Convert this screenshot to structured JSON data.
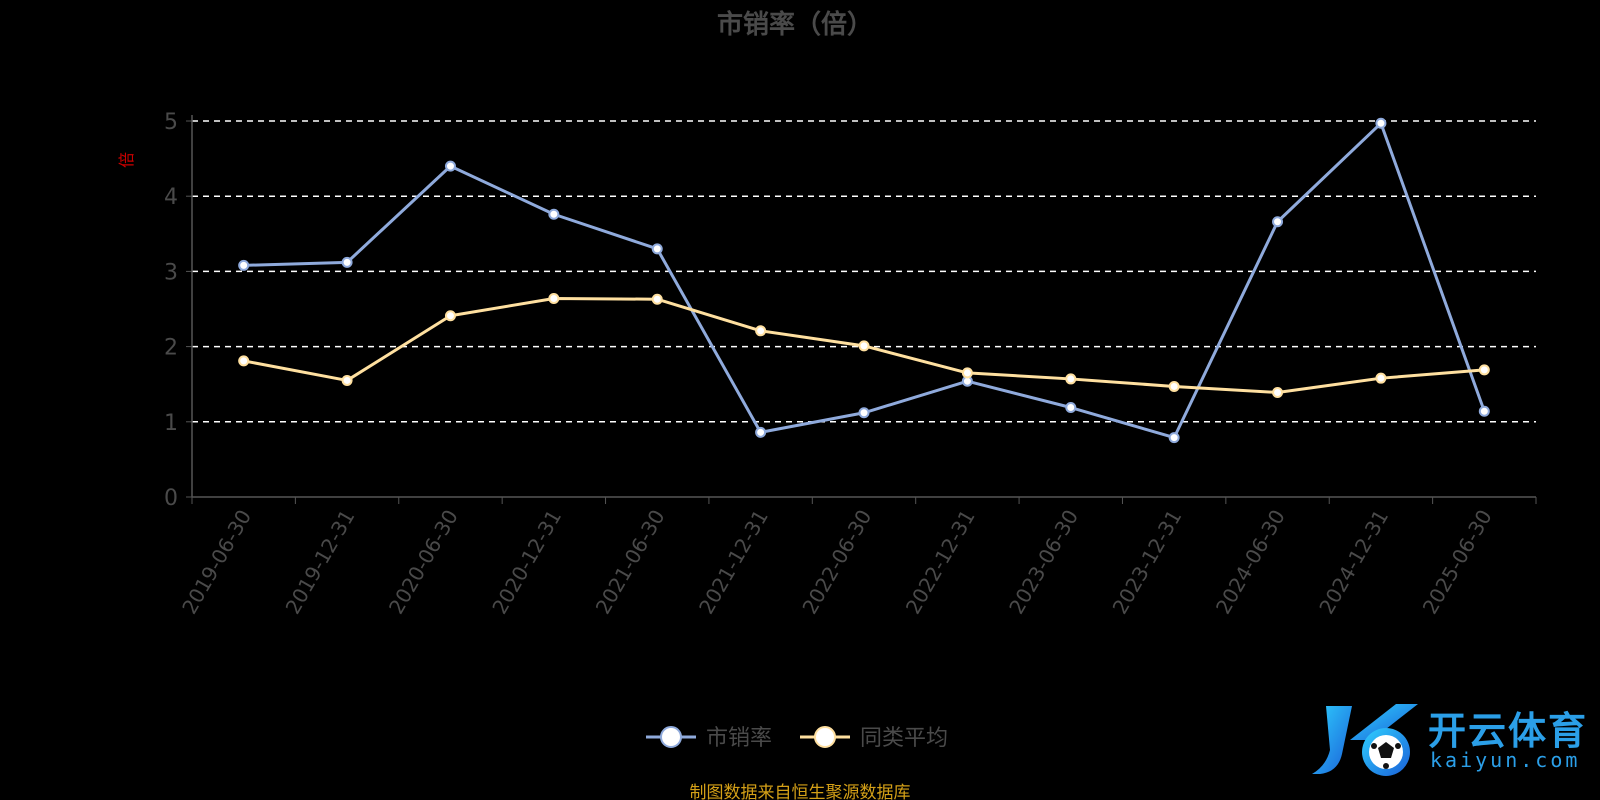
{
  "chart_data": {
    "type": "line",
    "title": "市销率（倍）",
    "ylabel": "倍",
    "xlabel": "",
    "ylim": [
      0,
      5
    ],
    "yticks": [
      0,
      1,
      2,
      3,
      4,
      5
    ],
    "grid": "horizontal-dashed",
    "legend_position": "bottom",
    "categories": [
      "2019-06-30",
      "2019-12-31",
      "2020-06-30",
      "2020-12-31",
      "2021-06-30",
      "2021-12-31",
      "2022-06-30",
      "2022-12-31",
      "2023-06-30",
      "2023-12-31",
      "2024-06-30",
      "2024-12-31",
      "2025-06-30"
    ],
    "series": [
      {
        "name": "市销率",
        "color": "#8faadc",
        "values": [
          3.08,
          3.12,
          4.4,
          3.76,
          3.3,
          0.86,
          1.12,
          1.54,
          1.19,
          0.79,
          3.66,
          4.97,
          1.14
        ]
      },
      {
        "name": "同类平均",
        "color": "#ffe0a0",
        "values": [
          1.81,
          1.55,
          2.41,
          2.64,
          2.63,
          2.21,
          2.01,
          1.65,
          1.57,
          1.47,
          1.39,
          1.58,
          1.69
        ]
      }
    ]
  },
  "source_note": "制图数据来自恒生聚源数据库",
  "logo": {
    "name_cn": "开云体育",
    "name_en": "kaiyun.com"
  }
}
